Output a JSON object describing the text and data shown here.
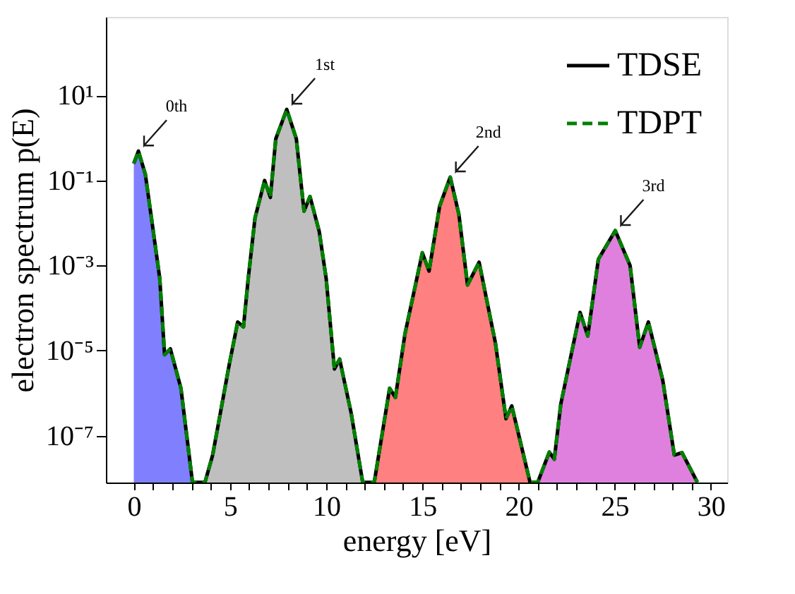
{
  "chart_data": {
    "type": "line",
    "xlabel": "energy [eV]",
    "ylabel": "electron spectrum p(E)",
    "xlim": [
      -1.45,
      30.85
    ],
    "ylim": [
      7.9e-09,
      700
    ],
    "log": "y",
    "grid": false,
    "legend": "top right",
    "xticks": [
      0,
      {
        "value": 1,
        "label": null
      },
      {
        "value": 2,
        "label": null
      },
      {
        "value": 3,
        "label": null
      },
      {
        "value": 4,
        "label": null
      },
      5,
      {
        "value": 6,
        "label": null
      },
      {
        "value": 7,
        "label": null
      },
      {
        "value": 8,
        "label": null
      },
      {
        "value": 9,
        "label": null
      },
      10,
      {
        "value": 11,
        "label": null
      },
      {
        "value": 12,
        "label": null
      },
      {
        "value": 13,
        "label": null
      },
      {
        "value": 14,
        "label": null
      },
      15,
      {
        "value": 16,
        "label": null
      },
      {
        "value": 17,
        "label": null
      },
      {
        "value": 18,
        "label": null
      },
      {
        "value": 19,
        "label": null
      },
      20,
      {
        "value": 21,
        "label": null
      },
      {
        "value": 22,
        "label": null
      },
      {
        "value": 23,
        "label": null
      },
      {
        "value": 24,
        "label": null
      },
      25,
      {
        "value": 26,
        "label": null
      },
      {
        "value": 27,
        "label": null
      },
      {
        "value": 28,
        "label": null
      },
      {
        "value": 29,
        "label": null
      },
      30
    ],
    "yticks": [
      {
        "value": 10,
        "label": "10¹"
      },
      {
        "value": 0.1,
        "label": "10⁻¹"
      },
      {
        "value": 0.001,
        "label": "10⁻³"
      },
      {
        "value": 1e-05,
        "label": "10⁻⁵"
      },
      {
        "value": 1e-07,
        "label": "10⁻⁷"
      }
    ],
    "annotations": [
      {
        "text": "0th",
        "x": 0.24,
        "y": 0.49
      },
      {
        "text": "1st",
        "x": 7.95,
        "y": 4.7
      },
      {
        "text": "2nd",
        "x": 16.45,
        "y": 0.12
      },
      {
        "text": "3rd",
        "x": 25.03,
        "y": 0.0066
      }
    ],
    "series": [
      {
        "type": "area",
        "color": "#8080ff",
        "x": [
          0,
          0.24,
          0.6,
          1.0,
          1.35,
          1.6,
          1.9,
          2.45,
          3.05
        ],
        "values": [
          0.25,
          0.49,
          0.14,
          0.007,
          0.0005,
          8e-06,
          1.1e-05,
          1.3e-06,
          8e-09
        ]
      },
      {
        "type": "area",
        "color": "#bfbfbf",
        "x": [
          3.7,
          4.1,
          4.95,
          5.4,
          5.7,
          5.95,
          6.3,
          6.8,
          7.1,
          7.38,
          7.95,
          8.45,
          8.85,
          9.16,
          9.64,
          10.0,
          10.43,
          10.7,
          11.3,
          11.9
        ],
        "values": [
          8e-09,
          3.5e-08,
          4.4e-06,
          4.7e-05,
          3.6e-05,
          0.0005,
          0.013,
          0.1,
          0.04,
          0.95,
          4.7,
          0.95,
          0.019,
          0.042,
          0.0063,
          0.0005,
          3.7e-06,
          6.3e-06,
          3.4e-07,
          8e-09
        ]
      },
      {
        "type": "area",
        "color": "#ff8080",
        "x": [
          12.5,
          13.3,
          13.6,
          14.1,
          15.0,
          15.35,
          15.9,
          16.45,
          16.9,
          17.35,
          17.95,
          18.8,
          19.35,
          19.65,
          20.6
        ],
        "values": [
          8e-09,
          1.3e-06,
          7.9e-07,
          2.5e-05,
          0.002,
          0.00074,
          0.025,
          0.12,
          0.016,
          0.00035,
          0.0012,
          1.5e-05,
          2.5e-07,
          5e-07,
          8e-09
        ]
      },
      {
        "type": "area",
        "color": "#df80df",
        "x": [
          21.0,
          21.6,
          21.86,
          22.2,
          23.2,
          23.6,
          24.15,
          25.03,
          25.8,
          26.3,
          26.75,
          27.5,
          28.1,
          28.5,
          29.3
        ],
        "values": [
          8e-09,
          4.1e-08,
          2.8e-08,
          5.6e-07,
          7.9e-05,
          2.2e-05,
          0.0014,
          0.0066,
          0.001,
          1.2e-05,
          4.7e-05,
          2e-06,
          3.5e-08,
          4e-08,
          8e-09
        ]
      },
      {
        "type": "line",
        "name": "TDSE",
        "color": "#000000",
        "line_style": "solid",
        "x": [
          0,
          0.24,
          0.6,
          1.0,
          1.35,
          1.6,
          1.9,
          2.45,
          3.05,
          3.7,
          4.1,
          4.95,
          5.4,
          5.7,
          5.95,
          6.3,
          6.8,
          7.1,
          7.38,
          7.95,
          8.45,
          8.85,
          9.16,
          9.64,
          10.0,
          10.43,
          10.7,
          11.3,
          11.9,
          12.5,
          13.3,
          13.6,
          14.1,
          15.0,
          15.35,
          15.9,
          16.45,
          16.9,
          17.35,
          17.95,
          18.8,
          19.35,
          19.65,
          20.6,
          21.0,
          21.6,
          21.86,
          22.2,
          23.2,
          23.6,
          24.15,
          25.03,
          25.8,
          26.3,
          26.75,
          27.5,
          28.1,
          28.5,
          29.3
        ],
        "values": [
          0.25,
          0.49,
          0.14,
          0.007,
          0.0005,
          8e-06,
          1.1e-05,
          1.3e-06,
          8e-09,
          8e-09,
          3.5e-08,
          4.4e-06,
          4.7e-05,
          3.6e-05,
          0.0005,
          0.013,
          0.1,
          0.04,
          0.95,
          4.7,
          0.95,
          0.019,
          0.042,
          0.0063,
          0.0005,
          3.7e-06,
          6.3e-06,
          3.4e-07,
          8e-09,
          8e-09,
          1.3e-06,
          7.9e-07,
          2.5e-05,
          0.002,
          0.00074,
          0.025,
          0.12,
          0.016,
          0.00035,
          0.0012,
          1.5e-05,
          2.5e-07,
          5e-07,
          8e-09,
          8e-09,
          4.1e-08,
          2.8e-08,
          5.6e-07,
          7.9e-05,
          2.2e-05,
          0.0014,
          0.0066,
          0.001,
          1.2e-05,
          4.7e-05,
          2e-06,
          3.5e-08,
          4e-08,
          8e-09
        ]
      },
      {
        "type": "line",
        "name": "TDPT",
        "color": "#008000",
        "line_style": "dashed",
        "x": [
          0,
          0.24,
          0.6,
          1.0,
          1.35,
          1.6,
          1.9,
          2.45,
          3.05,
          3.7,
          4.1,
          4.95,
          5.4,
          5.7,
          5.95,
          6.3,
          6.8,
          7.1,
          7.38,
          7.95,
          8.45,
          8.85,
          9.16,
          9.64,
          10.0,
          10.43,
          10.7,
          11.3,
          11.9,
          12.5,
          13.3,
          13.6,
          14.1,
          15.0,
          15.35,
          15.9,
          16.45,
          16.9,
          17.35,
          17.95,
          18.8,
          19.35,
          19.65,
          20.6,
          21.0,
          21.6,
          21.86,
          22.2,
          23.2,
          23.6,
          24.15,
          25.03,
          25.8,
          26.3,
          26.75,
          27.5,
          28.1,
          28.5,
          29.3
        ],
        "values": [
          0.25,
          0.49,
          0.14,
          0.007,
          0.0005,
          8e-06,
          1.1e-05,
          1.3e-06,
          8e-09,
          8e-09,
          3.5e-08,
          4.4e-06,
          4.7e-05,
          3.6e-05,
          0.0005,
          0.013,
          0.1,
          0.04,
          0.95,
          4.7,
          0.95,
          0.019,
          0.042,
          0.0063,
          0.0005,
          3.7e-06,
          6.3e-06,
          3.4e-07,
          8e-09,
          8e-09,
          1.3e-06,
          7.9e-07,
          2.5e-05,
          0.002,
          0.00074,
          0.025,
          0.12,
          0.016,
          0.00035,
          0.0012,
          1.5e-05,
          2.5e-07,
          5e-07,
          8e-09,
          8e-09,
          4.1e-08,
          2.8e-08,
          5.6e-07,
          7.9e-05,
          2.2e-05,
          0.0014,
          0.0066,
          0.001,
          1.2e-05,
          4.7e-05,
          2e-06,
          3.5e-08,
          4e-08,
          8e-09
        ]
      }
    ]
  }
}
